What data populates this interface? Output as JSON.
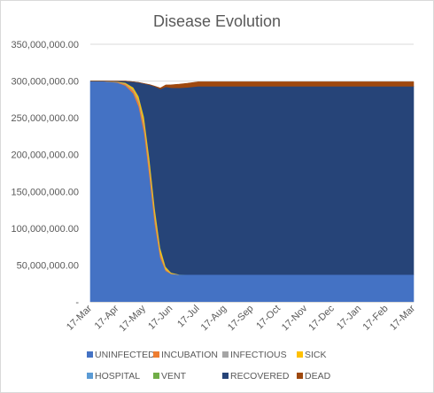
{
  "chart_data": {
    "type": "area",
    "stacked": true,
    "title": "Disease Evolution",
    "xlabel": "",
    "ylabel": "",
    "ylim": [
      0,
      350000000
    ],
    "y_ticks": [
      0,
      50000000,
      100000000,
      150000000,
      200000000,
      250000000,
      300000000,
      350000000
    ],
    "y_tick_labels": [
      "-",
      "50,000,000.00",
      "100,000,000.00",
      "150,000,000.00",
      "200,000,000.00",
      "250,000,000.00",
      "300,000,000.00",
      "350,000,000.00"
    ],
    "x_tick_labels": [
      "17-Mar",
      "17-Apr",
      "17-May",
      "17-Jun",
      "17-Jul",
      "17-Aug",
      "17-Sep",
      "17-Oct",
      "17-Nov",
      "17-Dec",
      "17-Jan",
      "17-Feb",
      "17-Mar"
    ],
    "x_range_months": [
      0,
      12
    ],
    "grid": "horizontal",
    "legend_position": "bottom",
    "x": [
      0,
      0.5,
      1.0,
      1.3,
      1.6,
      1.8,
      2.0,
      2.2,
      2.4,
      2.6,
      2.8,
      3.0,
      3.3,
      3.6,
      4.0,
      5,
      6,
      7,
      8,
      9,
      10,
      11,
      12
    ],
    "series": [
      {
        "name": "UNINFECTED",
        "color": "#4472C4",
        "values": [
          300000000,
          299800000,
          298000000,
          294000000,
          283000000,
          265000000,
          230000000,
          170000000,
          105000000,
          60000000,
          42000000,
          38000000,
          37000000,
          37000000,
          37000000,
          37000000,
          37000000,
          37000000,
          37000000,
          37000000,
          37000000,
          37000000,
          37000000
        ]
      },
      {
        "name": "INCUBATION",
        "color": "#ED7D31",
        "values": [
          0,
          100000,
          700000,
          1800000,
          3500000,
          5500000,
          8000000,
          9000000,
          7500000,
          4000000,
          1500000,
          400000,
          50000,
          0,
          0,
          0,
          0,
          0,
          0,
          0,
          0,
          0,
          0
        ]
      },
      {
        "name": "INFECTIOUS",
        "color": "#A5A5A5",
        "values": [
          0,
          50000,
          300000,
          800000,
          1500000,
          2400000,
          3300000,
          3800000,
          3200000,
          1800000,
          700000,
          200000,
          20000,
          0,
          0,
          0,
          0,
          0,
          0,
          0,
          0,
          0,
          0
        ]
      },
      {
        "name": "SICK",
        "color": "#FFC000",
        "values": [
          0,
          50000,
          400000,
          1200000,
          3000000,
          5500000,
          8500000,
          10000000,
          9500000,
          6500000,
          3000000,
          1000000,
          150000,
          0,
          0,
          0,
          0,
          0,
          0,
          0,
          0,
          0,
          0
        ]
      },
      {
        "name": "HOSPITAL",
        "color": "#5B9BD5",
        "values": [
          0,
          0,
          50000,
          200000,
          500000,
          900000,
          1400000,
          1800000,
          1900000,
          1500000,
          800000,
          300000,
          50000,
          0,
          0,
          0,
          0,
          0,
          0,
          0,
          0,
          0,
          0
        ]
      },
      {
        "name": "VENT",
        "color": "#70AD47",
        "values": [
          0,
          0,
          10000,
          40000,
          100000,
          200000,
          300000,
          400000,
          450000,
          350000,
          200000,
          80000,
          10000,
          0,
          0,
          0,
          0,
          0,
          0,
          0,
          0,
          0,
          0
        ]
      },
      {
        "name": "RECOVERED",
        "color": "#264478",
        "values": [
          0,
          0,
          540000,
          1960000,
          7400000,
          18500000,
          45000000,
          100000000,
          165000000,
          215000000,
          244000000,
          251000000,
          253500000,
          254500000,
          256000000,
          256000000,
          256000000,
          256000000,
          256000000,
          256000000,
          256000000,
          256000000,
          256000000
        ]
      },
      {
        "name": "DEAD",
        "color": "#9E480E",
        "values": [
          0,
          0,
          0,
          0,
          0,
          0,
          0,
          200000,
          500000,
          1500000,
          2500000,
          4000000,
          5000000,
          5500000,
          6000000,
          6000000,
          6000000,
          6000000,
          6000000,
          6000000,
          6000000,
          6000000,
          6000000
        ]
      }
    ]
  }
}
